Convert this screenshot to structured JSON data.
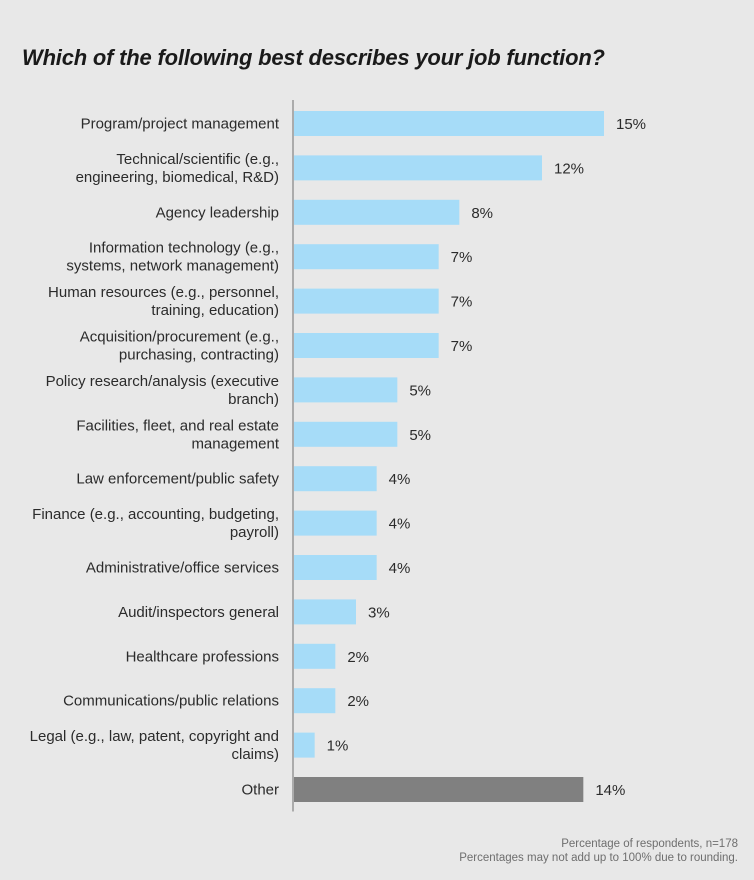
{
  "chart_data": {
    "type": "bar",
    "orientation": "horizontal",
    "title": "Which of the following best describes your job function?",
    "xlabel": "",
    "ylabel": "",
    "xlim": [
      0,
      15
    ],
    "grid": false,
    "unit": "%",
    "categories": [
      [
        "Program/project management"
      ],
      [
        "Technical/scientific (e.g.,",
        "engineering, biomedical, R&D)"
      ],
      [
        "Agency leadership"
      ],
      [
        "Information technology (e.g.,",
        "systems, network management)"
      ],
      [
        "Human resources (e.g., personnel,",
        "training, education)"
      ],
      [
        "Acquisition/procurement (e.g.,",
        "purchasing, contracting)"
      ],
      [
        "Policy research/analysis (executive",
        "branch)"
      ],
      [
        "Facilities, fleet, and real estate",
        "management"
      ],
      [
        "Law enforcement/public safety"
      ],
      [
        "Finance (e.g., accounting, budgeting,",
        "payroll)"
      ],
      [
        "Administrative/office services"
      ],
      [
        "Audit/inspectors general"
      ],
      [
        "Healthcare professions"
      ],
      [
        "Communications/public relations"
      ],
      [
        "Legal (e.g., law, patent, copyright and",
        "claims)"
      ],
      [
        "Other"
      ]
    ],
    "values": [
      15,
      12,
      8,
      7,
      7,
      7,
      5,
      5,
      4,
      4,
      4,
      3,
      2,
      2,
      1,
      14
    ],
    "value_labels": [
      "15%",
      "12%",
      "8%",
      "7%",
      "7%",
      "7%",
      "5%",
      "5%",
      "4%",
      "4%",
      "4%",
      "3%",
      "2%",
      "2%",
      "1%",
      "14%"
    ],
    "bar_colors": [
      "#a6dcf8",
      "#a6dcf8",
      "#a6dcf8",
      "#a6dcf8",
      "#a6dcf8",
      "#a6dcf8",
      "#a6dcf8",
      "#a6dcf8",
      "#a6dcf8",
      "#a6dcf8",
      "#a6dcf8",
      "#a6dcf8",
      "#a6dcf8",
      "#a6dcf8",
      "#a6dcf8",
      "#808080"
    ],
    "axis_color": "#8a8a8a"
  },
  "footnote": {
    "line1": "Percentage of respondents, n=178",
    "line2": "Percentages may not add up to 100% due to rounding."
  }
}
